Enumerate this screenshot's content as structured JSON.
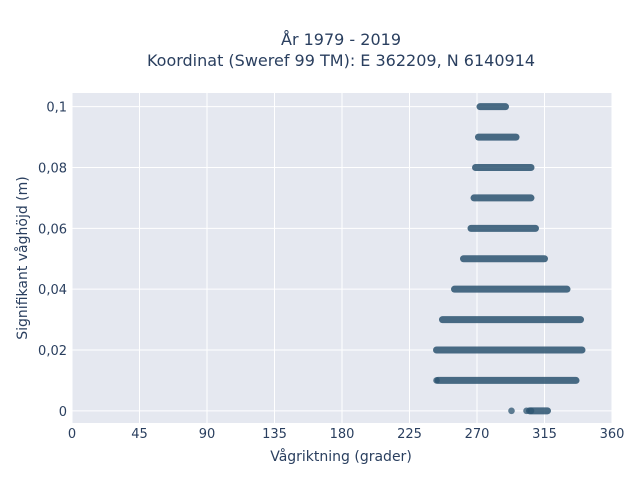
{
  "chart_data": {
    "type": "scatter",
    "title_lines": [
      "År 1979 - 2019",
      "Koordinat (Sweref 99 TM): E 362209, N 6140914"
    ],
    "xlabel": "Vågriktning (grader)",
    "ylabel": "Signifikant våghöjd (m)",
    "xlim": [
      0,
      360
    ],
    "ylim": [
      -0.004,
      0.1045
    ],
    "x_ticks": [
      0,
      45,
      90,
      135,
      180,
      225,
      270,
      315,
      360
    ],
    "y_ticks": [
      0,
      0.02,
      0.04,
      0.06,
      0.08,
      0.1
    ],
    "y_tick_labels": [
      "0",
      "0,02",
      "0,04",
      "0,06",
      "0,08",
      "0,1"
    ],
    "grid": true,
    "marker_color": "#2c5470",
    "background": "#e5e8f0",
    "bands": [
      {
        "y": 0.0,
        "x_start": 305,
        "x_end": 317,
        "scattered_x": [
          293,
          303,
          306
        ]
      },
      {
        "y": 0.01,
        "x_start": 244,
        "x_end": 336,
        "scattered_x": [
          243
        ]
      },
      {
        "y": 0.02,
        "x_start": 243,
        "x_end": 340,
        "scattered_x": []
      },
      {
        "y": 0.03,
        "x_start": 247,
        "x_end": 339,
        "scattered_x": []
      },
      {
        "y": 0.04,
        "x_start": 255,
        "x_end": 330,
        "scattered_x": []
      },
      {
        "y": 0.05,
        "x_start": 261,
        "x_end": 315,
        "scattered_x": []
      },
      {
        "y": 0.06,
        "x_start": 266,
        "x_end": 309,
        "scattered_x": []
      },
      {
        "y": 0.07,
        "x_start": 268,
        "x_end": 306,
        "scattered_x": []
      },
      {
        "y": 0.08,
        "x_start": 269,
        "x_end": 306,
        "scattered_x": []
      },
      {
        "y": 0.09,
        "x_start": 271,
        "x_end": 296,
        "scattered_x": []
      },
      {
        "y": 0.1,
        "x_start": 272,
        "x_end": 289,
        "scattered_x": []
      }
    ]
  }
}
